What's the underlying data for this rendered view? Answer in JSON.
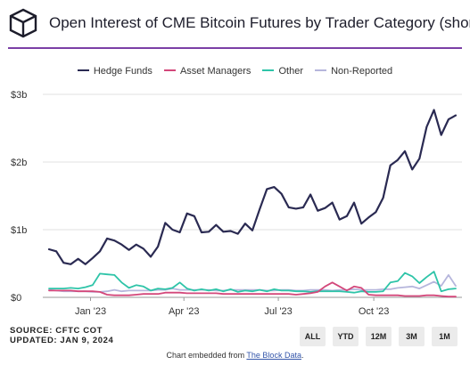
{
  "title": "Open Interest of CME Bitcoin Futures by Trader Category (short)",
  "source_line1": "SOURCE: CFTC COT",
  "source_line2": "UPDATED: JAN 9, 2024",
  "footer": {
    "prefix": "Chart embedded from ",
    "link_text": "The Block Data",
    "suffix": "."
  },
  "range_buttons": [
    "ALL",
    "YTD",
    "12M",
    "3M",
    "1M"
  ],
  "colors": {
    "accent_rule": "#7b3fa6",
    "hedge_funds": "#2a2a52",
    "asset_managers": "#d3477a",
    "other": "#2ec4a8",
    "non_reported": "#b6b6dc"
  },
  "chart_data": {
    "type": "line",
    "title": "Open Interest of CME Bitcoin Futures by Trader Category (short)",
    "xlabel": "",
    "ylabel": "",
    "x_ticks": [
      "Jan '23",
      "Apr '23",
      "Jul '23",
      "Oct '23"
    ],
    "y_ticks": [
      "$0",
      "$1b",
      "$2b",
      "$3b"
    ],
    "ylim": [
      0,
      3.0
    ],
    "grid": true,
    "legend_position": "top",
    "x": [
      "2022-12-06",
      "2022-12-13",
      "2022-12-20",
      "2022-12-27",
      "2023-01-03",
      "2023-01-10",
      "2023-01-17",
      "2023-01-24",
      "2023-01-31",
      "2023-02-07",
      "2023-02-14",
      "2023-02-21",
      "2023-02-28",
      "2023-03-07",
      "2023-03-14",
      "2023-03-21",
      "2023-03-28",
      "2023-04-04",
      "2023-04-11",
      "2023-04-18",
      "2023-04-25",
      "2023-05-02",
      "2023-05-09",
      "2023-05-16",
      "2023-05-23",
      "2023-05-30",
      "2023-06-06",
      "2023-06-13",
      "2023-06-20",
      "2023-06-27",
      "2023-07-04",
      "2023-07-11",
      "2023-07-18",
      "2023-07-25",
      "2023-08-01",
      "2023-08-08",
      "2023-08-15",
      "2023-08-22",
      "2023-08-29",
      "2023-09-05",
      "2023-09-12",
      "2023-09-19",
      "2023-09-26",
      "2023-10-03",
      "2023-10-10",
      "2023-10-17",
      "2023-10-24",
      "2023-10-31",
      "2023-11-07",
      "2023-11-14",
      "2023-11-21",
      "2023-11-28",
      "2023-12-05",
      "2023-12-12",
      "2023-12-19",
      "2023-12-26",
      "2024-01-02"
    ],
    "series": [
      {
        "name": "Hedge Funds",
        "color": "#2a2a52",
        "values": [
          0.71,
          0.68,
          0.51,
          0.49,
          0.57,
          0.49,
          0.58,
          0.68,
          0.87,
          0.84,
          0.78,
          0.7,
          0.78,
          0.72,
          0.6,
          0.75,
          1.1,
          1.0,
          0.96,
          1.24,
          1.2,
          0.96,
          0.97,
          1.07,
          0.97,
          0.98,
          0.94,
          1.09,
          0.99,
          1.3,
          1.6,
          1.63,
          1.53,
          1.33,
          1.31,
          1.33,
          1.52,
          1.28,
          1.32,
          1.4,
          1.15,
          1.2,
          1.4,
          1.09,
          1.18,
          1.26,
          1.47,
          1.95,
          2.03,
          2.16,
          1.89,
          2.05,
          2.52,
          2.77,
          2.4,
          2.63,
          2.69
        ]
      },
      {
        "name": "Asset Managers",
        "color": "#d3477a",
        "values": [
          0.1,
          0.1,
          0.1,
          0.1,
          0.09,
          0.09,
          0.09,
          0.08,
          0.04,
          0.03,
          0.03,
          0.03,
          0.04,
          0.05,
          0.05,
          0.05,
          0.07,
          0.07,
          0.07,
          0.06,
          0.06,
          0.06,
          0.06,
          0.06,
          0.05,
          0.05,
          0.05,
          0.05,
          0.05,
          0.05,
          0.05,
          0.05,
          0.05,
          0.05,
          0.04,
          0.05,
          0.06,
          0.08,
          0.16,
          0.22,
          0.16,
          0.1,
          0.16,
          0.14,
          0.04,
          0.03,
          0.03,
          0.03,
          0.03,
          0.02,
          0.02,
          0.02,
          0.03,
          0.03,
          0.02,
          0.01,
          0.01
        ]
      },
      {
        "name": "Other",
        "color": "#2ec4a8",
        "values": [
          0.13,
          0.13,
          0.13,
          0.14,
          0.13,
          0.15,
          0.18,
          0.35,
          0.34,
          0.33,
          0.22,
          0.14,
          0.18,
          0.16,
          0.1,
          0.13,
          0.12,
          0.14,
          0.22,
          0.13,
          0.1,
          0.12,
          0.1,
          0.12,
          0.09,
          0.12,
          0.08,
          0.1,
          0.09,
          0.11,
          0.09,
          0.12,
          0.1,
          0.1,
          0.09,
          0.09,
          0.08,
          0.09,
          0.09,
          0.09,
          0.09,
          0.08,
          0.07,
          0.09,
          0.08,
          0.08,
          0.09,
          0.22,
          0.24,
          0.36,
          0.31,
          0.21,
          0.3,
          0.38,
          0.09,
          0.12,
          0.13
        ]
      },
      {
        "name": "Non-Reported",
        "color": "#b6b6dc",
        "values": [
          0.11,
          0.1,
          0.09,
          0.09,
          0.09,
          0.09,
          0.08,
          0.08,
          0.09,
          0.11,
          0.09,
          0.1,
          0.1,
          0.1,
          0.1,
          0.11,
          0.11,
          0.13,
          0.11,
          0.11,
          0.11,
          0.11,
          0.11,
          0.1,
          0.1,
          0.11,
          0.11,
          0.11,
          0.11,
          0.11,
          0.1,
          0.1,
          0.11,
          0.11,
          0.1,
          0.1,
          0.11,
          0.11,
          0.11,
          0.1,
          0.11,
          0.11,
          0.12,
          0.11,
          0.11,
          0.11,
          0.12,
          0.12,
          0.14,
          0.15,
          0.16,
          0.13,
          0.18,
          0.23,
          0.17,
          0.33,
          0.17
        ]
      }
    ]
  }
}
